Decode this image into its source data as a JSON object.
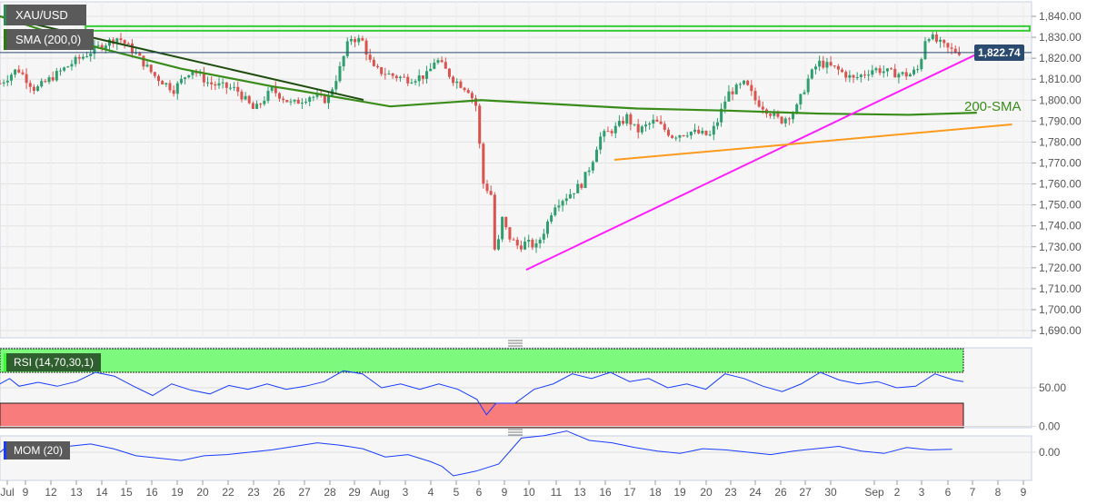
{
  "header": {
    "symbol": "XAU/USD",
    "indicator": "SMA (200,0)"
  },
  "price_tag": "1,822.74",
  "sma_label": "200-SMA",
  "rsi": {
    "label": "RSI (14,70,30,1)",
    "ticks": [
      "50.00",
      "0.00"
    ]
  },
  "mom": {
    "label": "MOM (20)",
    "ticks": [
      "0.00"
    ]
  },
  "colors": {
    "up": "#2e9e6e",
    "down": "#d9534f",
    "sma": "#3a8c1a",
    "support_magenta": "#ff1fff",
    "support_orange": "#ff9a1f",
    "resistance": "#33cc33",
    "rsi_line": "#1a3cff"
  },
  "chart_data": {
    "type": "candlestick",
    "title": "XAU/USD",
    "y_ticks": [
      "1,840.00",
      "1,830.00",
      "1,820.00",
      "1,810.00",
      "1,800.00",
      "1,790.00",
      "1,780.00",
      "1,770.00",
      "1,760.00",
      "1,750.00",
      "1,740.00",
      "1,730.00",
      "1,720.00",
      "1,710.00",
      "1,700.00",
      "1,690.00"
    ],
    "ylim": [
      1690,
      1840
    ],
    "x_ticks": [
      "Jul",
      "9",
      "12",
      "13",
      "14",
      "15",
      "16",
      "19",
      "20",
      "22",
      "23",
      "26",
      "27",
      "28",
      "29",
      "Aug",
      "3",
      "4",
      "5",
      "6",
      "9",
      "10",
      "11",
      "13",
      "16",
      "17",
      "18",
      "19",
      "20",
      "23",
      "24",
      "26",
      "27",
      "30",
      "Sep",
      "2",
      "3",
      "6",
      "7",
      "8",
      "9"
    ],
    "last_price": 1822.74,
    "price_path": [
      [
        0,
        1808
      ],
      [
        0.7,
        1815
      ],
      [
        1.4,
        1805
      ],
      [
        2.2,
        1812
      ],
      [
        2.9,
        1818
      ],
      [
        4,
        1826
      ],
      [
        4.7,
        1830
      ],
      [
        5.4,
        1822
      ],
      [
        6.1,
        1812
      ],
      [
        6.9,
        1805
      ],
      [
        7.6,
        1815
      ],
      [
        8.3,
        1808
      ],
      [
        9.4,
        1805
      ],
      [
        10.1,
        1795
      ],
      [
        10.8,
        1805
      ],
      [
        11.6,
        1798
      ],
      [
        12.3,
        1802
      ],
      [
        13,
        1800
      ],
      [
        13.5,
        1815
      ],
      [
        13.9,
        1830
      ],
      [
        14.4,
        1828
      ],
      [
        14.8,
        1815
      ],
      [
        15.5,
        1812
      ],
      [
        16.2,
        1810
      ],
      [
        17,
        1812
      ],
      [
        17.3,
        1820
      ],
      [
        18,
        1810
      ],
      [
        18.6,
        1805
      ],
      [
        19,
        1795
      ],
      [
        19.1,
        1762
      ],
      [
        19.5,
        1755
      ],
      [
        19.7,
        1720
      ],
      [
        19.9,
        1745
      ],
      [
        20.2,
        1735
      ],
      [
        20.6,
        1730
      ],
      [
        20.9,
        1732
      ],
      [
        21.3,
        1730
      ],
      [
        21.7,
        1740
      ],
      [
        22,
        1750
      ],
      [
        22.6,
        1755
      ],
      [
        23.1,
        1760
      ],
      [
        23.5,
        1770
      ],
      [
        23.8,
        1782
      ],
      [
        24.2,
        1785
      ],
      [
        24.5,
        1787
      ],
      [
        24.9,
        1792
      ],
      [
        25.3,
        1785
      ],
      [
        26,
        1790
      ],
      [
        26.7,
        1783
      ],
      [
        27.4,
        1785
      ],
      [
        28.2,
        1783
      ],
      [
        28.5,
        1790
      ],
      [
        28.9,
        1803
      ],
      [
        29.6,
        1808
      ],
      [
        30,
        1800
      ],
      [
        30.5,
        1795
      ],
      [
        31,
        1790
      ],
      [
        31.6,
        1795
      ],
      [
        32.1,
        1810
      ],
      [
        32.5,
        1818
      ],
      [
        33.2,
        1815
      ],
      [
        33.9,
        1810
      ],
      [
        34.7,
        1815
      ],
      [
        35.4,
        1813
      ],
      [
        36.1,
        1812
      ],
      [
        36.5,
        1815
      ],
      [
        36.8,
        1832
      ],
      [
        37.2,
        1828
      ],
      [
        37.7,
        1824
      ],
      [
        38.2,
        1823
      ]
    ],
    "series": [
      {
        "name": "200-SMA",
        "type": "line",
        "points": [
          [
            0,
            1840
          ],
          [
            3.6,
            1826
          ],
          [
            7.2,
            1815
          ],
          [
            10.8,
            1806.6
          ],
          [
            11.9,
            1804.5
          ],
          [
            15.5,
            1797
          ],
          [
            19.1,
            1800
          ],
          [
            25.3,
            1796
          ],
          [
            28.9,
            1795
          ],
          [
            32.5,
            1793.6
          ],
          [
            36.1,
            1793
          ],
          [
            38.8,
            1794
          ]
        ]
      },
      {
        "name": "resistance",
        "type": "line",
        "points": [
          [
            3.4,
            1834
          ],
          [
            40.9,
            1834
          ]
        ]
      },
      {
        "name": "support-magenta",
        "type": "line",
        "points": [
          [
            20.9,
            1719
          ],
          [
            39.5,
            1826
          ]
        ]
      },
      {
        "name": "support-orange",
        "type": "line",
        "points": [
          [
            24.4,
            1771.5
          ],
          [
            40.2,
            1788.4
          ]
        ]
      }
    ],
    "rsi_levels": {
      "upper": 70,
      "lower": 30
    },
    "rsi_path": [
      [
        0,
        55
      ],
      [
        0.5,
        62
      ],
      [
        1,
        52
      ],
      [
        2,
        57
      ],
      [
        3,
        52
      ],
      [
        4,
        58
      ],
      [
        5,
        70
      ],
      [
        6,
        65
      ],
      [
        7,
        52
      ],
      [
        8,
        40
      ],
      [
        9,
        55
      ],
      [
        10,
        47
      ],
      [
        11,
        42
      ],
      [
        12,
        53
      ],
      [
        13,
        48
      ],
      [
        14,
        55
      ],
      [
        15,
        48
      ],
      [
        16,
        52
      ],
      [
        17,
        58
      ],
      [
        18,
        72
      ],
      [
        19,
        68
      ],
      [
        20,
        50
      ],
      [
        21,
        55
      ],
      [
        22,
        48
      ],
      [
        23,
        55
      ],
      [
        24,
        48
      ],
      [
        25,
        35
      ],
      [
        25.5,
        15
      ],
      [
        26,
        30
      ],
      [
        27,
        30
      ],
      [
        28,
        48
      ],
      [
        29,
        55
      ],
      [
        30,
        68
      ],
      [
        31,
        62
      ],
      [
        32,
        70
      ],
      [
        33,
        58
      ],
      [
        34,
        62
      ],
      [
        35,
        50
      ],
      [
        36,
        55
      ],
      [
        37,
        48
      ],
      [
        38,
        68
      ],
      [
        39,
        62
      ],
      [
        40,
        52
      ],
      [
        41,
        45
      ],
      [
        42,
        55
      ],
      [
        43,
        70
      ],
      [
        44,
        60
      ],
      [
        45,
        55
      ],
      [
        46,
        58
      ],
      [
        47,
        50
      ],
      [
        48,
        52
      ],
      [
        49,
        68
      ],
      [
        50,
        60
      ],
      [
        50.5,
        58
      ]
    ],
    "mom_path": [
      [
        0,
        0
      ],
      [
        0.5,
        8
      ],
      [
        1,
        2
      ],
      [
        2,
        0
      ],
      [
        3,
        5
      ],
      [
        4,
        7
      ],
      [
        5,
        3
      ],
      [
        6,
        -3
      ],
      [
        7,
        -5
      ],
      [
        8,
        -7
      ],
      [
        9,
        -3
      ],
      [
        10,
        -2
      ],
      [
        11,
        0
      ],
      [
        12,
        2
      ],
      [
        13,
        5
      ],
      [
        14,
        8
      ],
      [
        15,
        6
      ],
      [
        16,
        3
      ],
      [
        17,
        -4
      ],
      [
        18,
        -2
      ],
      [
        19,
        -8
      ],
      [
        19.5,
        -12
      ],
      [
        20,
        -20
      ],
      [
        21,
        -16
      ],
      [
        22,
        -10
      ],
      [
        23,
        12
      ],
      [
        24,
        14
      ],
      [
        25,
        18
      ],
      [
        26,
        10
      ],
      [
        27,
        8
      ],
      [
        28,
        4
      ],
      [
        29,
        1
      ],
      [
        30,
        -1
      ],
      [
        31,
        3
      ],
      [
        32,
        2
      ],
      [
        33,
        0
      ],
      [
        34,
        -2
      ],
      [
        35,
        1
      ],
      [
        36,
        3
      ],
      [
        37,
        5
      ],
      [
        38,
        1
      ],
      [
        39,
        -1
      ],
      [
        40,
        4
      ],
      [
        41,
        2
      ],
      [
        42,
        2.5
      ]
    ]
  }
}
